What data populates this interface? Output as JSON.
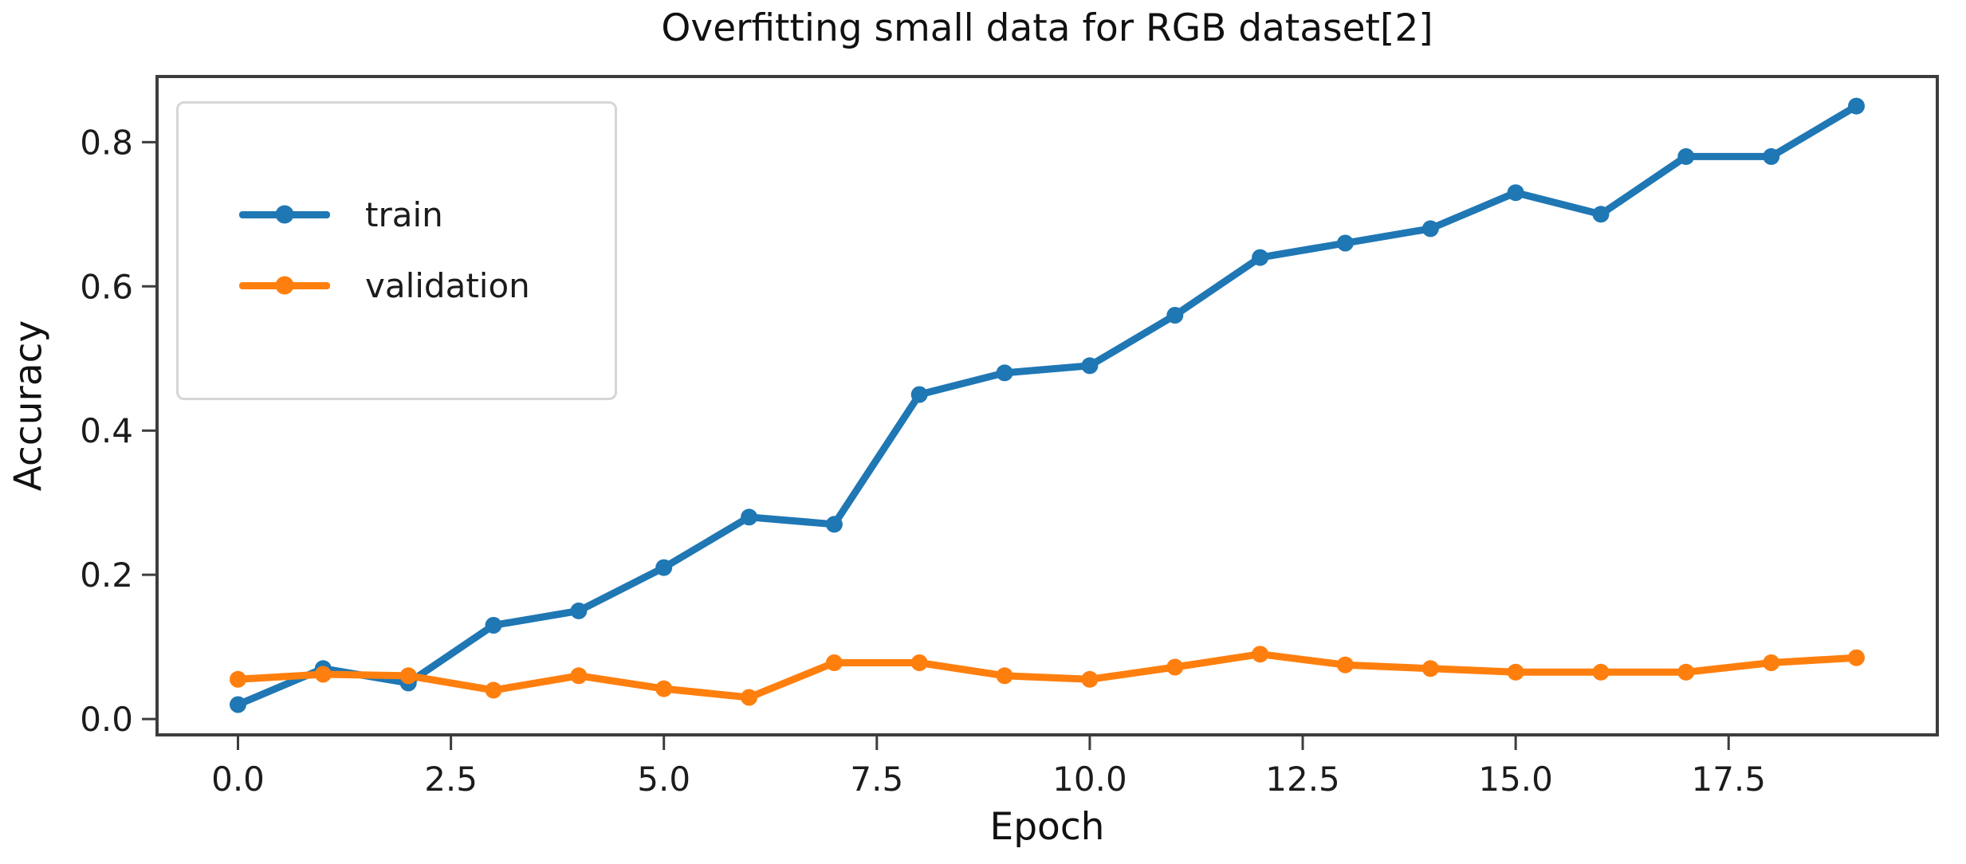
{
  "figure": {
    "title": "Overfitting small data for RGB dataset[2]",
    "xlabel": "Epoch",
    "ylabel": "Accuracy"
  },
  "legend": {
    "position": "upper left",
    "items": [
      {
        "label": "train",
        "color": "#1f77b4"
      },
      {
        "label": "validation",
        "color": "#ff7f0e"
      }
    ]
  },
  "chart_data": {
    "type": "line",
    "title": "Overfitting small data for RGB dataset[2]",
    "xlabel": "Epoch",
    "ylabel": "Accuracy",
    "x": [
      0,
      1,
      2,
      3,
      4,
      5,
      6,
      7,
      8,
      9,
      10,
      11,
      12,
      13,
      14,
      15,
      16,
      17,
      18,
      19
    ],
    "series": [
      {
        "name": "train",
        "color": "#1f77b4",
        "values": [
          0.02,
          0.07,
          0.05,
          0.13,
          0.15,
          0.21,
          0.28,
          0.27,
          0.45,
          0.48,
          0.49,
          0.56,
          0.64,
          0.66,
          0.68,
          0.73,
          0.7,
          0.78,
          0.78,
          0.85
        ]
      },
      {
        "name": "validation",
        "color": "#ff7f0e",
        "values": [
          0.055,
          0.062,
          0.06,
          0.04,
          0.06,
          0.042,
          0.03,
          0.078,
          0.078,
          0.06,
          0.055,
          0.072,
          0.09,
          0.075,
          0.07,
          0.065,
          0.065,
          0.065,
          0.078,
          0.085
        ]
      }
    ],
    "xticks": {
      "values": [
        0,
        2.5,
        5,
        7.5,
        10,
        12.5,
        15,
        17.5
      ],
      "labels": [
        "0.0",
        "2.5",
        "5.0",
        "7.5",
        "10.0",
        "12.5",
        "15.0",
        "17.5"
      ]
    },
    "yticks": {
      "values": [
        0,
        0.2,
        0.4,
        0.6,
        0.8
      ],
      "labels": [
        "0.0",
        "0.2",
        "0.4",
        "0.6",
        "0.8"
      ]
    },
    "xlim": [
      -0.95,
      19.95
    ],
    "ylim": [
      -0.022,
      0.891
    ],
    "grid": false,
    "marker": "circle",
    "legend_position": "upper left",
    "colors": {
      "axis": "#3d3d3d",
      "tick_text": "#1c1c1c",
      "legend_border": "#d6d6d6"
    }
  }
}
